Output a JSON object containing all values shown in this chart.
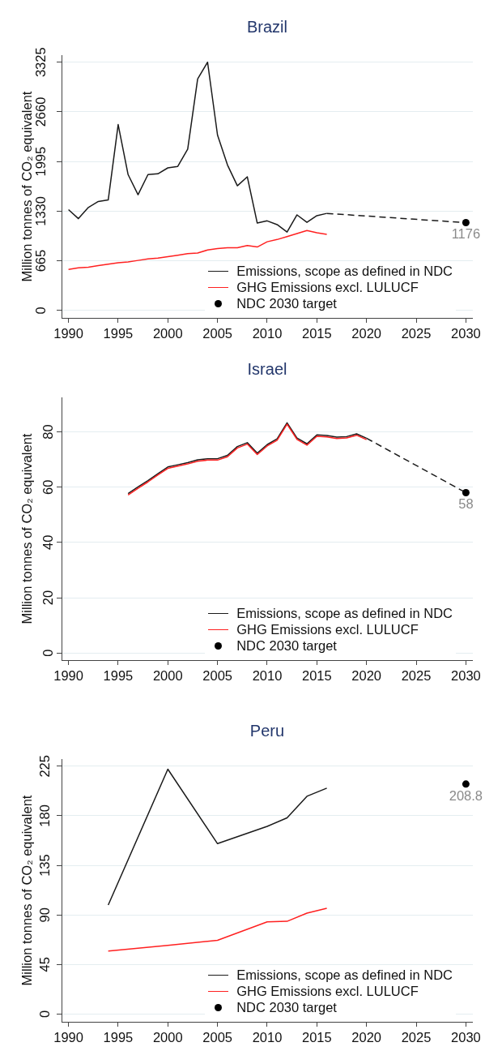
{
  "chart_data": [
    {
      "type": "line",
      "title": "Brazil",
      "ylabel": "Million tonnes of CO₂ equivalent",
      "xlim": [
        1989.3,
        2030.7
      ],
      "xticks": [
        1990,
        1995,
        2000,
        2005,
        2010,
        2015,
        2020,
        2025,
        2030
      ],
      "ylim": [
        -100,
        3420
      ],
      "yticks": [
        0,
        665,
        1330,
        1995,
        2660,
        3325
      ],
      "grid": "y",
      "legend": "bottom right",
      "series": [
        {
          "name": "Emissions, scope as defined in NDC",
          "color": "#1a1a1a",
          "x": [
            1990,
            1991,
            1992,
            1993,
            1994,
            1995,
            1996,
            1997,
            1998,
            1999,
            2000,
            2001,
            2002,
            2003,
            2004,
            2005,
            2006,
            2007,
            2008,
            2009,
            2010,
            2011,
            2012,
            2013,
            2014,
            2015,
            2016
          ],
          "values": [
            1350,
            1230,
            1380,
            1460,
            1480,
            2490,
            1820,
            1550,
            1820,
            1830,
            1910,
            1930,
            2160,
            3100,
            3325,
            2350,
            1950,
            1670,
            1790,
            1170,
            1200,
            1150,
            1050,
            1280,
            1180,
            1270,
            1300
          ]
        },
        {
          "name": "GHG Emissions excl. LULUCF",
          "color": "#ff2020",
          "x": [
            1990,
            1991,
            1992,
            1993,
            1994,
            1995,
            1996,
            1997,
            1998,
            1999,
            2000,
            2001,
            2002,
            2003,
            2004,
            2005,
            2006,
            2007,
            2008,
            2009,
            2010,
            2011,
            2012,
            2013,
            2014,
            2015,
            2016
          ],
          "values": [
            550,
            570,
            580,
            600,
            620,
            640,
            650,
            670,
            690,
            700,
            720,
            740,
            760,
            770,
            810,
            830,
            840,
            840,
            870,
            850,
            920,
            950,
            990,
            1030,
            1070,
            1040,
            1020
          ]
        },
        {
          "type": "line",
          "color": "#1a1a1a",
          "line_style": "dashed",
          "x": [
            2016,
            2030
          ],
          "values": [
            1300,
            1176
          ]
        },
        {
          "name": "NDC 2030 target",
          "type": "scatter",
          "marker": "circle",
          "color": "#000000",
          "x": [
            2030
          ],
          "values": [
            1176
          ],
          "value_labels": [
            "1176"
          ]
        }
      ]
    },
    {
      "type": "line",
      "title": "Israel",
      "ylabel": "Million tonnes of CO₂ equivalent",
      "xlim": [
        1989.3,
        2030.7
      ],
      "xticks": [
        1990,
        1995,
        2000,
        2005,
        2010,
        2015,
        2020,
        2025,
        2030
      ],
      "ylim": [
        -2.6,
        92.5
      ],
      "yticks": [
        0,
        20,
        40,
        60,
        80
      ],
      "grid": "y",
      "legend": "bottom right",
      "series": [
        {
          "name": "Emissions, scope as defined in NDC",
          "color": "#1a1a1a",
          "x": [
            1996,
            1997,
            1998,
            1999,
            2000,
            2001,
            2002,
            2003,
            2004,
            2005,
            2006,
            2007,
            2008,
            2009,
            2010,
            2011,
            2012,
            2013,
            2014,
            2015,
            2016,
            2017,
            2018,
            2019,
            2020
          ],
          "values": [
            57.7,
            60.1,
            62.4,
            64.9,
            67.3,
            68.1,
            68.9,
            69.9,
            70.3,
            70.3,
            71.5,
            74.7,
            76.1,
            72.3,
            75.4,
            77.5,
            83.3,
            77.8,
            75.7,
            78.9,
            78.7,
            78.1,
            78.3,
            79.3,
            77.7
          ]
        },
        {
          "name": "GHG Emissions excl. LULUCF",
          "color": "#ff2020",
          "x": [
            1996,
            1997,
            1998,
            1999,
            2000,
            2001,
            2002,
            2003,
            2004,
            2005,
            2006,
            2007,
            2008,
            2009,
            2010,
            2011,
            2012,
            2013,
            2014,
            2015,
            2016,
            2017,
            2018,
            2019,
            2020
          ],
          "values": [
            57.2,
            59.6,
            61.9,
            64.4,
            66.8,
            67.6,
            68.4,
            69.4,
            69.8,
            69.8,
            71.0,
            74.2,
            75.6,
            71.8,
            74.9,
            77.0,
            82.8,
            77.3,
            75.2,
            78.4,
            78.2,
            77.6,
            77.8,
            78.8,
            77.2
          ]
        },
        {
          "type": "line",
          "color": "#1a1a1a",
          "line_style": "dashed",
          "x": [
            2020,
            2030
          ],
          "values": [
            77.7,
            58
          ]
        },
        {
          "name": "NDC 2030 target",
          "type": "scatter",
          "marker": "circle",
          "color": "#000000",
          "x": [
            2030
          ],
          "values": [
            58
          ],
          "value_labels": [
            "58"
          ]
        }
      ]
    },
    {
      "type": "line",
      "title": "Peru",
      "ylabel": "Million tonnes of CO₂ equivalent",
      "xlim": [
        1989.3,
        2030.7
      ],
      "xticks": [
        1990,
        1995,
        2000,
        2005,
        2010,
        2015,
        2020,
        2025,
        2030
      ],
      "ylim": [
        -7,
        231.5
      ],
      "yticks": [
        0,
        45,
        90,
        135,
        180,
        225
      ],
      "grid": "y",
      "legend": "bottom right",
      "series": [
        {
          "name": "Emissions, scope as defined in NDC",
          "color": "#1a1a1a",
          "x": [
            1994,
            2000,
            2005,
            2010,
            2012,
            2014,
            2016
          ],
          "values": [
            99.0,
            222.3,
            154.7,
            170.4,
            178.1,
            197.7,
            205.1
          ]
        },
        {
          "name": "GHG Emissions excl. LULUCF",
          "color": "#ff2020",
          "x": [
            1994,
            2000,
            2005,
            2010,
            2012,
            2014,
            2016
          ],
          "values": [
            57.2,
            62.4,
            67.0,
            83.7,
            84.2,
            91.6,
            96.0
          ]
        },
        {
          "name": "NDC 2030 target",
          "type": "scatter",
          "marker": "circle",
          "color": "#000000",
          "x": [
            2030
          ],
          "values": [
            208.8
          ],
          "value_labels": [
            "208.8"
          ]
        }
      ]
    }
  ]
}
